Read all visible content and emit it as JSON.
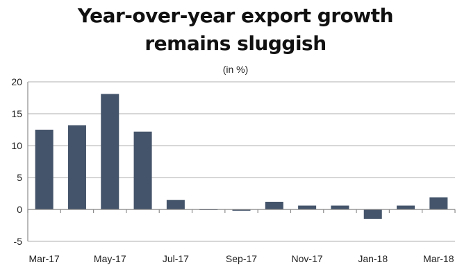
{
  "chart_data": {
    "type": "bar",
    "title_lines": [
      "Year-over-year export growth",
      "remains sluggish"
    ],
    "subtitle": "(in %)",
    "xlabel": "",
    "ylabel": "",
    "categories": [
      "Mar-17",
      "Apr-17",
      "May-17",
      "Jun-17",
      "Jul-17",
      "Aug-17",
      "Sep-17",
      "Oct-17",
      "Nov-17",
      "Dec-17",
      "Jan-18",
      "Feb-18",
      "Mar-18"
    ],
    "x_tick_labels": [
      "Mar-17",
      "May-17",
      "Jul-17",
      "Sep-17",
      "Nov-17",
      "Jan-18",
      "Mar-18"
    ],
    "values": [
      12.5,
      13.2,
      18.1,
      12.2,
      1.5,
      -0.1,
      -0.2,
      1.2,
      0.6,
      0.6,
      -1.5,
      0.6,
      1.9
    ],
    "ylim": [
      -5,
      20
    ],
    "y_ticks": [
      -5,
      0,
      5,
      10,
      15,
      20
    ],
    "grid": true,
    "legend": "none",
    "colors": {
      "bar": "#44546a",
      "grid": "#bfbfbf",
      "axis": "#8c8c8c"
    }
  }
}
